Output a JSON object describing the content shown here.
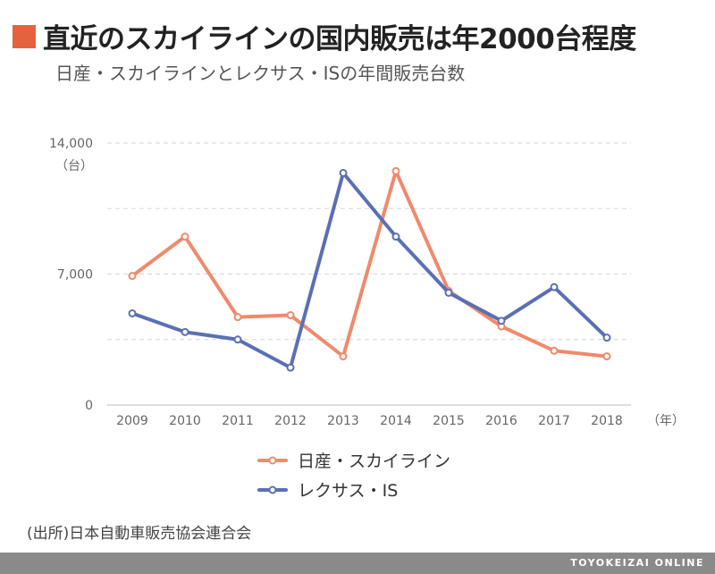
{
  "header": {
    "title": "直近のスカイラインの国内販売は年2000台程度",
    "subtitle": "日産・スカイラインとレクサス・ISの年間販売台数",
    "accent_color": "#e4633e"
  },
  "source": "(出所)日本自動車販売協会連合会",
  "footer": {
    "brand": "TOYOKEIZAI ONLINE"
  },
  "chart_data": {
    "type": "line",
    "x": [
      "2009",
      "2010",
      "2011",
      "2012",
      "2013",
      "2014",
      "2015",
      "2016",
      "2017",
      "2018"
    ],
    "xlabel": "（年）",
    "ylabel": "（台）",
    "ylim": [
      0,
      14000
    ],
    "yticks": [
      "0",
      "7,000",
      "14,000"
    ],
    "grid": true,
    "legend": "bottom-center",
    "series": [
      {
        "name": "日産・スカイライン",
        "color": "#ef8a6c",
        "values": [
          6900,
          9000,
          4700,
          4800,
          2600,
          12500,
          6100,
          4200,
          2900,
          2600
        ]
      },
      {
        "name": "レクサス・IS",
        "color": "#5b6fb4",
        "values": [
          4900,
          3900,
          3500,
          2000,
          12400,
          9000,
          6000,
          4500,
          6300,
          3600
        ]
      }
    ]
  }
}
